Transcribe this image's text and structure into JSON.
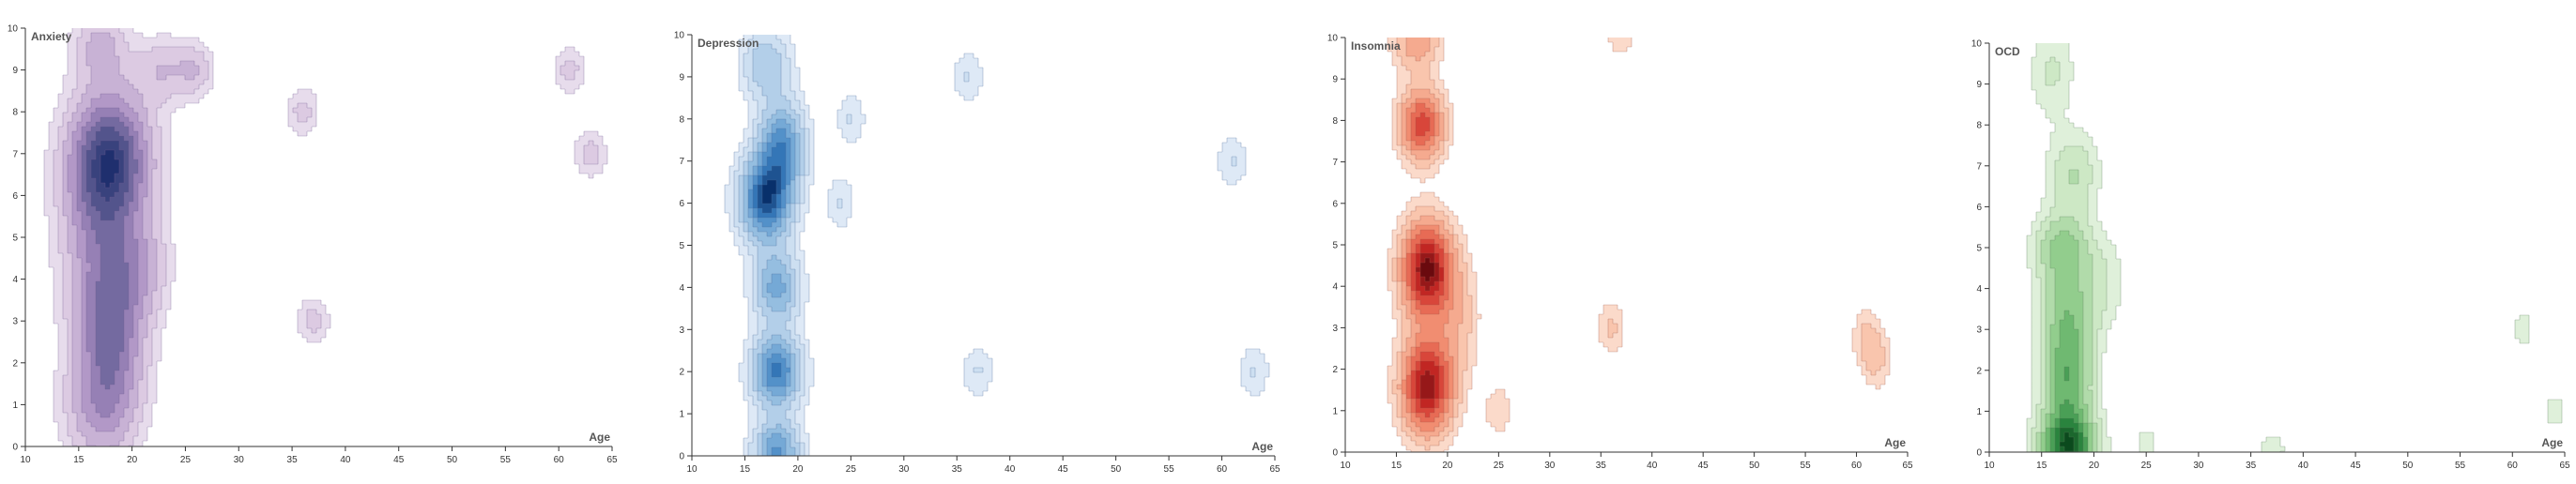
{
  "chart_data": [
    {
      "type": "density",
      "title": "Anxiety",
      "xlabel": "Age",
      "ylabel": "",
      "xlim": [
        10,
        65
      ],
      "ylim": [
        0,
        10
      ],
      "x_ticks": [
        "10",
        "15",
        "20",
        "25",
        "30",
        "35",
        "40",
        "45",
        "50",
        "55",
        "60",
        "65"
      ],
      "y_ticks": [
        "0",
        "1",
        "2",
        "3",
        "4",
        "5",
        "6",
        "7",
        "8",
        "9",
        "10"
      ],
      "colors": [
        "#f3eef6",
        "#d9c6e0",
        "#a78bc0",
        "#5a5990",
        "#1f2f6e"
      ],
      "contour_color": "#6f5a90",
      "clusters": [
        {
          "age": 18,
          "score": 6.9,
          "weight": 1.0,
          "sx": 2.6,
          "sy": 1.1
        },
        {
          "age": 17,
          "score": 5.2,
          "weight": 0.45,
          "sx": 2.6,
          "sy": 1.6
        },
        {
          "age": 18,
          "score": 2.7,
          "weight": 0.75,
          "sx": 2.2,
          "sy": 1.3
        },
        {
          "age": 17,
          "score": 0.8,
          "weight": 0.4,
          "sx": 2.4,
          "sy": 0.9
        },
        {
          "age": 21,
          "score": 4.3,
          "weight": 0.3,
          "sx": 1.8,
          "sy": 0.8
        },
        {
          "age": 17,
          "score": 9.6,
          "weight": 0.35,
          "sx": 1.8,
          "sy": 0.6
        },
        {
          "age": 23,
          "score": 9.0,
          "weight": 0.3,
          "sx": 1.9,
          "sy": 0.55
        },
        {
          "age": 26,
          "score": 9.0,
          "weight": 0.25,
          "sx": 1.2,
          "sy": 0.45
        },
        {
          "age": 36,
          "score": 8.0,
          "weight": 0.25,
          "sx": 1.1,
          "sy": 0.4
        },
        {
          "age": 37,
          "score": 3.0,
          "weight": 0.25,
          "sx": 1.1,
          "sy": 0.4
        },
        {
          "age": 61,
          "score": 9.0,
          "weight": 0.25,
          "sx": 1.1,
          "sy": 0.4
        },
        {
          "age": 63,
          "score": 7.0,
          "weight": 0.25,
          "sx": 1.1,
          "sy": 0.4
        }
      ]
    },
    {
      "type": "density",
      "title": "Depression",
      "xlabel": "Age",
      "ylabel": "",
      "xlim": [
        10,
        65
      ],
      "ylim": [
        0,
        10
      ],
      "x_ticks": [
        "10",
        "15",
        "20",
        "25",
        "30",
        "35",
        "40",
        "45",
        "50",
        "55",
        "60",
        "65"
      ],
      "y_ticks": [
        "0",
        "1",
        "2",
        "3",
        "4",
        "5",
        "6",
        "7",
        "8",
        "9",
        "10"
      ],
      "colors": [
        "#eef4fb",
        "#c9dcf0",
        "#86b5dc",
        "#3a7fc0",
        "#08306b"
      ],
      "contour_color": "#4a6a9a",
      "clusters": [
        {
          "age": 17,
          "score": 6.1,
          "weight": 1.0,
          "sx": 1.7,
          "sy": 0.7
        },
        {
          "age": 18.5,
          "score": 7.4,
          "weight": 0.7,
          "sx": 1.5,
          "sy": 0.7
        },
        {
          "age": 18,
          "score": 2.0,
          "weight": 0.85,
          "sx": 1.6,
          "sy": 0.6
        },
        {
          "age": 18,
          "score": 4.0,
          "weight": 0.6,
          "sx": 1.5,
          "sy": 0.6
        },
        {
          "age": 18,
          "score": 0.1,
          "weight": 0.7,
          "sx": 1.5,
          "sy": 0.5
        },
        {
          "age": 17,
          "score": 9.3,
          "weight": 0.4,
          "sx": 1.6,
          "sy": 0.6
        },
        {
          "age": 24,
          "score": 6.0,
          "weight": 0.18,
          "sx": 1.0,
          "sy": 0.45
        },
        {
          "age": 25,
          "score": 8.0,
          "weight": 0.18,
          "sx": 1.0,
          "sy": 0.45
        },
        {
          "age": 36,
          "score": 9.0,
          "weight": 0.18,
          "sx": 1.1,
          "sy": 0.45
        },
        {
          "age": 37,
          "score": 2.0,
          "weight": 0.18,
          "sx": 1.1,
          "sy": 0.45
        },
        {
          "age": 61,
          "score": 7.0,
          "weight": 0.18,
          "sx": 1.1,
          "sy": 0.45
        },
        {
          "age": 63,
          "score": 2.0,
          "weight": 0.18,
          "sx": 1.1,
          "sy": 0.45
        }
      ]
    },
    {
      "type": "density",
      "title": "Insomnia",
      "xlabel": "Age",
      "ylabel": "",
      "xlim": [
        10,
        65
      ],
      "ylim": [
        0,
        10
      ],
      "x_ticks": [
        "10",
        "15",
        "20",
        "25",
        "30",
        "35",
        "40",
        "45",
        "50",
        "55",
        "60",
        "65"
      ],
      "y_ticks": [
        "0",
        "1",
        "2",
        "3",
        "4",
        "5",
        "6",
        "7",
        "8",
        "9",
        "10"
      ],
      "colors": [
        "#fdeee6",
        "#f8c0a6",
        "#ef7e62",
        "#cc2a26",
        "#6a0a0e"
      ],
      "contour_color": "#a0584a",
      "clusters": [
        {
          "age": 18,
          "score": 4.4,
          "weight": 1.0,
          "sx": 1.7,
          "sy": 0.8
        },
        {
          "age": 18,
          "score": 1.6,
          "weight": 0.95,
          "sx": 1.7,
          "sy": 0.8
        },
        {
          "age": 17.5,
          "score": 7.9,
          "weight": 0.7,
          "sx": 1.5,
          "sy": 0.6
        },
        {
          "age": 17,
          "score": 9.9,
          "weight": 0.35,
          "sx": 1.6,
          "sy": 0.5
        },
        {
          "age": 21,
          "score": 3.2,
          "weight": 0.2,
          "sx": 1.5,
          "sy": 1.0
        },
        {
          "age": 25,
          "score": 1.0,
          "weight": 0.15,
          "sx": 1.0,
          "sy": 0.45
        },
        {
          "age": 36,
          "score": 3.0,
          "weight": 0.18,
          "sx": 1.0,
          "sy": 0.45
        },
        {
          "age": 37,
          "score": 10.0,
          "weight": 0.15,
          "sx": 1.0,
          "sy": 0.35
        },
        {
          "age": 61,
          "score": 2.8,
          "weight": 0.17,
          "sx": 1.0,
          "sy": 0.5
        },
        {
          "age": 62,
          "score": 2.2,
          "weight": 0.17,
          "sx": 1.0,
          "sy": 0.5
        }
      ]
    },
    {
      "type": "density",
      "title": "OCD",
      "xlabel": "Age",
      "ylabel": "",
      "xlim": [
        10,
        65
      ],
      "ylim": [
        0,
        10
      ],
      "x_ticks": [
        "10",
        "15",
        "20",
        "25",
        "30",
        "35",
        "40",
        "45",
        "50",
        "55",
        "60",
        "65"
      ],
      "y_ticks": [
        "0",
        "1",
        "2",
        "3",
        "4",
        "5",
        "6",
        "7",
        "8",
        "9",
        "10"
      ],
      "colors": [
        "#f1f8ee",
        "#c8e6c0",
        "#82c67f",
        "#2e8b42",
        "#0b4a1d"
      ],
      "contour_color": "#5a7a5a",
      "clusters": [
        {
          "age": 17.5,
          "score": 0.1,
          "weight": 1.0,
          "sx": 1.8,
          "sy": 0.6
        },
        {
          "age": 17.5,
          "score": 1.7,
          "weight": 0.6,
          "sx": 1.6,
          "sy": 0.9
        },
        {
          "age": 17.5,
          "score": 3.4,
          "weight": 0.45,
          "sx": 1.8,
          "sy": 0.9
        },
        {
          "age": 17,
          "score": 5.0,
          "weight": 0.45,
          "sx": 1.8,
          "sy": 0.6
        },
        {
          "age": 18,
          "score": 6.8,
          "weight": 0.3,
          "sx": 1.7,
          "sy": 0.7
        },
        {
          "age": 16,
          "score": 9.3,
          "weight": 0.2,
          "sx": 1.5,
          "sy": 0.8
        },
        {
          "age": 21,
          "score": 4.2,
          "weight": 0.15,
          "sx": 1.6,
          "sy": 0.8
        },
        {
          "age": 25,
          "score": 0.2,
          "weight": 0.12,
          "sx": 1.1,
          "sy": 0.45
        },
        {
          "age": 37,
          "score": 0.1,
          "weight": 0.12,
          "sx": 1.4,
          "sy": 0.4
        },
        {
          "age": 61,
          "score": 3.0,
          "weight": 0.12,
          "sx": 1.1,
          "sy": 0.45
        },
        {
          "age": 64,
          "score": 1.0,
          "weight": 0.12,
          "sx": 1.1,
          "sy": 0.45
        }
      ]
    }
  ]
}
